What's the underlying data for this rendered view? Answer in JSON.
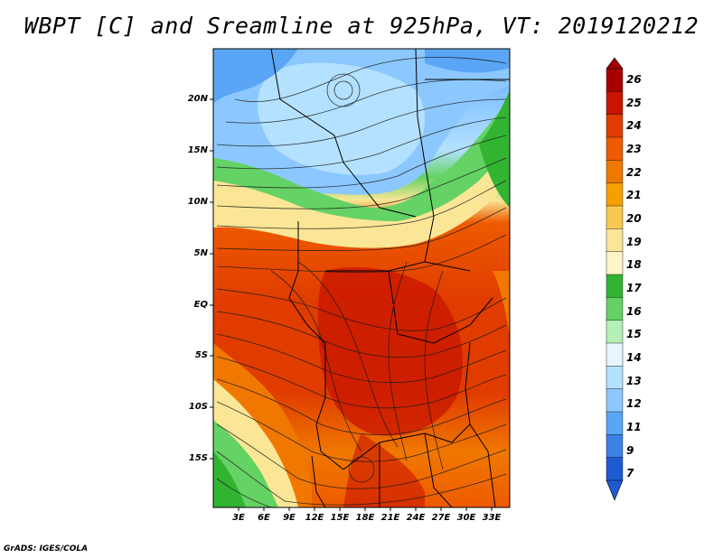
{
  "title": "WBPT [C] and Sreamline at 925hPa, VT: 2019120212",
  "credit": "GrADS: IGES/COLA",
  "map": {
    "lat_labels": [
      "20N",
      "15N",
      "10N",
      "5N",
      "EQ",
      "5S",
      "10S",
      "15S"
    ],
    "lon_labels": [
      "3E",
      "6E",
      "9E",
      "12E",
      "15E",
      "18E",
      "21E",
      "24E",
      "27E",
      "30E",
      "33E"
    ]
  },
  "colorbar": {
    "labels": [
      "26",
      "25",
      "24",
      "23",
      "22",
      "21",
      "20",
      "19",
      "18",
      "17",
      "16",
      "15",
      "14",
      "13",
      "12",
      "11",
      "9",
      "7"
    ],
    "colors": [
      "#a50000",
      "#c81400",
      "#e03c00",
      "#ee5a00",
      "#f07800",
      "#f5a000",
      "#f8c850",
      "#fae696",
      "#fff5c8",
      "#32b432",
      "#64d264",
      "#b4f0b4",
      "#e6f5ff",
      "#b4e1ff",
      "#8cc8ff",
      "#5aa5f5",
      "#3c82e6",
      "#1e5ad2"
    ]
  }
}
